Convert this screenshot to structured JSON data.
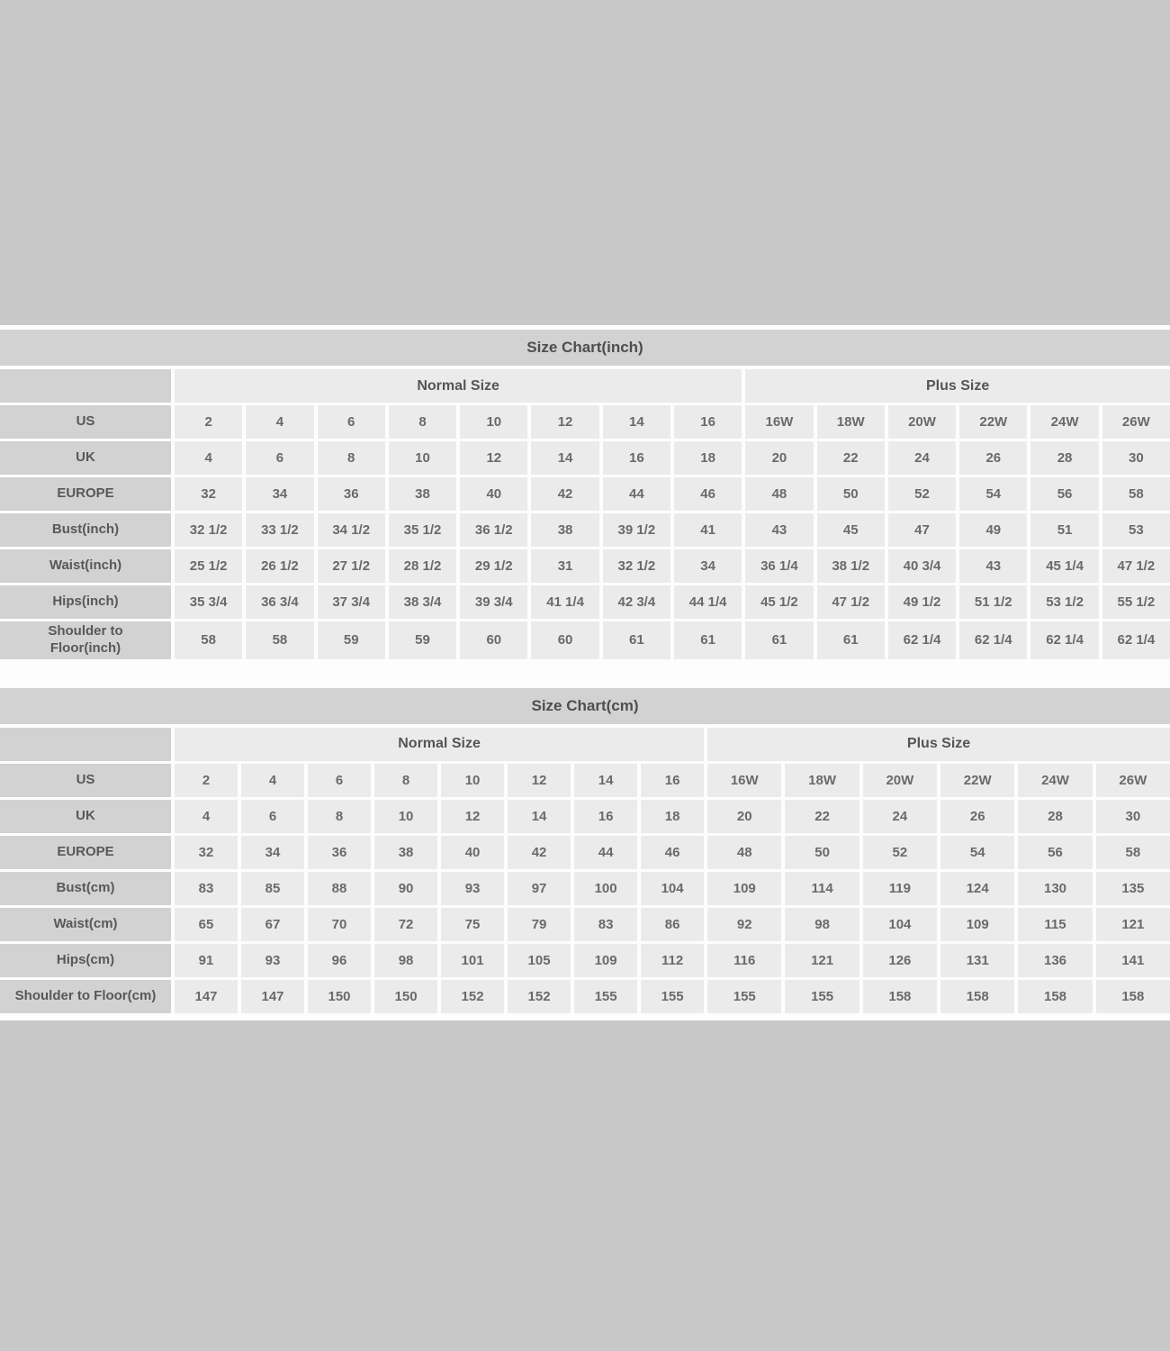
{
  "colors": {
    "page_background": "#c8c8c8",
    "panel_background": "#fdfdfd",
    "header_cell_background": "#d2d2d2",
    "data_cell_background": "#ebebeb",
    "text_color": "#5a5a5a"
  },
  "chart_data": [
    {
      "type": "table",
      "title": "Size Chart(inch)",
      "groups": [
        {
          "label": "Normal Size",
          "span": 8
        },
        {
          "label": "Plus Size",
          "span": 6
        }
      ],
      "rows": [
        {
          "label": "US",
          "values": [
            "2",
            "4",
            "6",
            "8",
            "10",
            "12",
            "14",
            "16",
            "16W",
            "18W",
            "20W",
            "22W",
            "24W",
            "26W"
          ]
        },
        {
          "label": "UK",
          "values": [
            "4",
            "6",
            "8",
            "10",
            "12",
            "14",
            "16",
            "18",
            "20",
            "22",
            "24",
            "26",
            "28",
            "30"
          ]
        },
        {
          "label": "EUROPE",
          "values": [
            "32",
            "34",
            "36",
            "38",
            "40",
            "42",
            "44",
            "46",
            "48",
            "50",
            "52",
            "54",
            "56",
            "58"
          ]
        },
        {
          "label": "Bust(inch)",
          "values": [
            "32 1/2",
            "33 1/2",
            "34 1/2",
            "35 1/2",
            "36 1/2",
            "38",
            "39 1/2",
            "41",
            "43",
            "45",
            "47",
            "49",
            "51",
            "53"
          ]
        },
        {
          "label": "Waist(inch)",
          "values": [
            "25 1/2",
            "26 1/2",
            "27 1/2",
            "28 1/2",
            "29 1/2",
            "31",
            "32 1/2",
            "34",
            "36 1/4",
            "38 1/2",
            "40 3/4",
            "43",
            "45 1/4",
            "47 1/2"
          ]
        },
        {
          "label": "Hips(inch)",
          "values": [
            "35 3/4",
            "36 3/4",
            "37 3/4",
            "38 3/4",
            "39 3/4",
            "41 1/4",
            "42 3/4",
            "44 1/4",
            "45 1/2",
            "47 1/2",
            "49 1/2",
            "51 1/2",
            "53 1/2",
            "55 1/2"
          ]
        },
        {
          "label": "Shoulder to\nFloor(inch)",
          "values": [
            "58",
            "58",
            "59",
            "59",
            "60",
            "60",
            "61",
            "61",
            "61",
            "61",
            "62 1/4",
            "62 1/4",
            "62 1/4",
            "62 1/4"
          ]
        }
      ]
    },
    {
      "type": "table",
      "title": "Size Chart(cm)",
      "groups": [
        {
          "label": "Normal Size",
          "span": 8
        },
        {
          "label": "Plus Size",
          "span": 6
        }
      ],
      "rows": [
        {
          "label": "US",
          "values": [
            "2",
            "4",
            "6",
            "8",
            "10",
            "12",
            "14",
            "16",
            "16W",
            "18W",
            "20W",
            "22W",
            "24W",
            "26W"
          ]
        },
        {
          "label": "UK",
          "values": [
            "4",
            "6",
            "8",
            "10",
            "12",
            "14",
            "16",
            "18",
            "20",
            "22",
            "24",
            "26",
            "28",
            "30"
          ]
        },
        {
          "label": "EUROPE",
          "values": [
            "32",
            "34",
            "36",
            "38",
            "40",
            "42",
            "44",
            "46",
            "48",
            "50",
            "52",
            "54",
            "56",
            "58"
          ]
        },
        {
          "label": "Bust(cm)",
          "values": [
            "83",
            "85",
            "88",
            "90",
            "93",
            "97",
            "100",
            "104",
            "109",
            "114",
            "119",
            "124",
            "130",
            "135"
          ]
        },
        {
          "label": "Waist(cm)",
          "values": [
            "65",
            "67",
            "70",
            "72",
            "75",
            "79",
            "83",
            "86",
            "92",
            "98",
            "104",
            "109",
            "115",
            "121"
          ]
        },
        {
          "label": "Hips(cm)",
          "values": [
            "91",
            "93",
            "96",
            "98",
            "101",
            "105",
            "109",
            "112",
            "116",
            "121",
            "126",
            "131",
            "136",
            "141"
          ]
        },
        {
          "label": "Shoulder to Floor(cm)",
          "values": [
            "147",
            "147",
            "150",
            "150",
            "152",
            "152",
            "155",
            "155",
            "155",
            "155",
            "158",
            "158",
            "158",
            "158"
          ]
        }
      ]
    }
  ]
}
